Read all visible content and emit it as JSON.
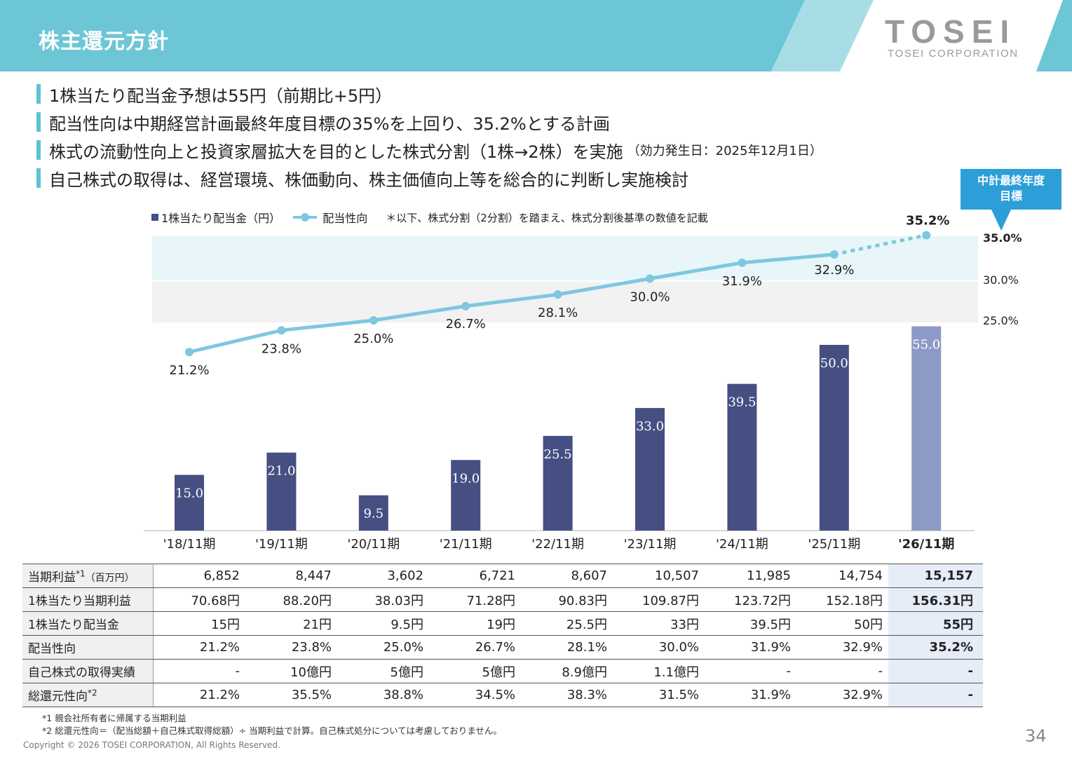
{
  "header": {
    "title": "株主還元方針",
    "logo_word": "TOSEI",
    "logo_sub": "TOSEI CORPORATION"
  },
  "bullets": [
    {
      "text": "1株当たり配当金予想は55円（前期比+5円）",
      "note": ""
    },
    {
      "text": "配当性向は中期経営計画最終年度目標の35%を上回り、35.2%とする計画",
      "note": ""
    },
    {
      "text": "株式の流動性向上と投資家層拡大を目的とした株式分割（1株→2株）を実施",
      "note": "（効力発生日：2025年12月1日）"
    },
    {
      "text": "自己株式の取得は、経営環境、株価動向、株主価値向上等を総合的に判断し実施検討",
      "note": ""
    }
  ],
  "callout": {
    "line1": "中計最終年度",
    "line2": "目標"
  },
  "legend": {
    "bar_label": "1株当たり配当金（円）",
    "line_label": "配当性向",
    "note": "＊以下、株式分割（2分割）を踏まえ、株式分割後基準の数値を記載"
  },
  "chart_data": {
    "type": "bar",
    "categories": [
      "'18/11期",
      "'19/11期",
      "'20/11期",
      "'21/11期",
      "'22/11期",
      "'23/11期",
      "'24/11期",
      "'25/11期",
      "'26/11期"
    ],
    "series": [
      {
        "name": "1株当たり配当金（円）",
        "type": "bar",
        "values": [
          15.0,
          21.0,
          9.5,
          19.0,
          25.5,
          33.0,
          39.5,
          50.0,
          55.0
        ],
        "labels": [
          "15.0",
          "21.0",
          "9.5",
          "19.0",
          "25.5",
          "33.0",
          "39.5",
          "50.0",
          "55.0"
        ]
      },
      {
        "name": "配当性向",
        "type": "line",
        "values": [
          21.2,
          23.8,
          25.0,
          26.7,
          28.1,
          30.0,
          31.9,
          32.9,
          35.2
        ],
        "labels": [
          "21.2%",
          "23.8%",
          "25.0%",
          "26.7%",
          "28.1%",
          "30.0%",
          "31.9%",
          "32.9%",
          "35.2%"
        ]
      }
    ],
    "right_axis_ticks": [
      "35.0%",
      "30.0%",
      "25.0%"
    ],
    "highlight_category": "'26/11期",
    "colors": {
      "bar": "#454f82",
      "bar_forecast": "#8e9ac6",
      "line": "#7fc7e0",
      "band_upper": "#e8f6f9",
      "band_lower": "#f2f2f2"
    }
  },
  "table": {
    "rows": [
      {
        "label": "当期利益",
        "label_sup": "*1",
        "label_small": "（百万円）",
        "values": [
          "6,852",
          "8,447",
          "3,602",
          "6,721",
          "8,607",
          "10,507",
          "11,985",
          "14,754",
          "15,157"
        ]
      },
      {
        "label": "1株当たり当期利益",
        "label_sup": "",
        "label_small": "",
        "values": [
          "70.68円",
          "88.20円",
          "38.03円",
          "71.28円",
          "90.83円",
          "109.87円",
          "123.72円",
          "152.18円",
          "156.31円"
        ]
      },
      {
        "label": "1株当たり配当金",
        "label_sup": "",
        "label_small": "",
        "values": [
          "15円",
          "21円",
          "9.5円",
          "19円",
          "25.5円",
          "33円",
          "39.5円",
          "50円",
          "55円"
        ]
      },
      {
        "label": "配当性向",
        "label_sup": "",
        "label_small": "",
        "values": [
          "21.2%",
          "23.8%",
          "25.0%",
          "26.7%",
          "28.1%",
          "30.0%",
          "31.9%",
          "32.9%",
          "35.2%"
        ]
      },
      {
        "label": "自己株式の取得実績",
        "label_sup": "",
        "label_small": "",
        "values": [
          "-",
          "10億円",
          "5億円",
          "5億円",
          "8.9億円",
          "1.1億円",
          "-",
          "-",
          "-"
        ]
      },
      {
        "label": "総還元性向",
        "label_sup": "*2",
        "label_small": "",
        "values": [
          "21.2%",
          "35.5%",
          "38.8%",
          "34.5%",
          "38.3%",
          "31.5%",
          "31.9%",
          "32.9%",
          "-"
        ]
      }
    ]
  },
  "footnotes": {
    "f1": "*1 親会社所有者に帰属する当期利益",
    "f2": "*2 総還元性向＝（配当総額＋自己株式取得総額）÷ 当期利益で計算。自己株式処分については考慮しておりません。"
  },
  "copyright": "Copyright © 2026 TOSEI CORPORATION, All Rights Reserved.",
  "page_number": "34"
}
